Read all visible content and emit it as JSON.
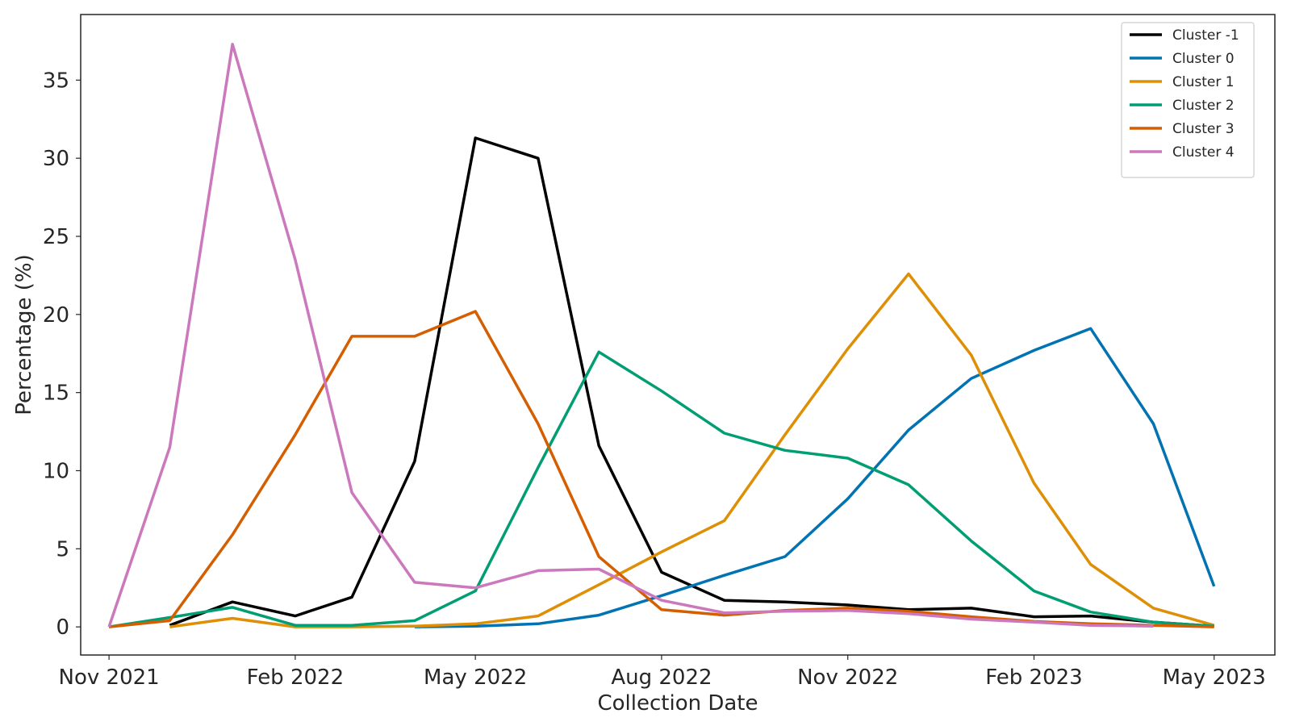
{
  "chart_data": {
    "type": "line",
    "xlabel": "Collection Date",
    "ylabel": "Percentage (%)",
    "xlim": [
      "2021-10-18",
      "2023-05-31"
    ],
    "ylim": [
      -1.8,
      39.2
    ],
    "grid": false,
    "legend_position": "top-right",
    "x_ticks": [
      {
        "date": "2021-11-01",
        "label": "Nov 2021"
      },
      {
        "date": "2022-02-01",
        "label": "Feb 2022"
      },
      {
        "date": "2022-05-01",
        "label": "May 2022"
      },
      {
        "date": "2022-08-01",
        "label": "Aug 2022"
      },
      {
        "date": "2022-11-01",
        "label": "Nov 2022"
      },
      {
        "date": "2023-02-01",
        "label": "Feb 2023"
      },
      {
        "date": "2023-05-01",
        "label": "May 2023"
      }
    ],
    "y_ticks": [
      0,
      5,
      10,
      15,
      20,
      25,
      30,
      35
    ],
    "series": [
      {
        "name": "Cluster -1",
        "color": "#000000",
        "points": [
          [
            "2021-12-01",
            0.1
          ],
          [
            "2022-01-01",
            1.6
          ],
          [
            "2022-02-01",
            0.7
          ],
          [
            "2022-03-01",
            1.9
          ],
          [
            "2022-04-01",
            10.6
          ],
          [
            "2022-05-01",
            31.3
          ],
          [
            "2022-06-01",
            30.0
          ],
          [
            "2022-07-01",
            11.6
          ],
          [
            "2022-08-01",
            3.5
          ],
          [
            "2022-09-01",
            1.7
          ],
          [
            "2022-10-01",
            1.6
          ],
          [
            "2022-11-01",
            1.4
          ],
          [
            "2022-12-01",
            1.1
          ],
          [
            "2023-01-01",
            1.2
          ],
          [
            "2023-02-01",
            0.65
          ],
          [
            "2023-03-01",
            0.7
          ],
          [
            "2023-04-01",
            0.3
          ],
          [
            "2023-05-01",
            0.05
          ]
        ]
      },
      {
        "name": "Cluster 0",
        "color": "#0173b2",
        "points": [
          [
            "2022-04-01",
            0.0
          ],
          [
            "2022-05-01",
            0.05
          ],
          [
            "2022-06-01",
            0.2
          ],
          [
            "2022-07-01",
            0.75
          ],
          [
            "2022-08-01",
            2.0
          ],
          [
            "2022-09-01",
            3.3
          ],
          [
            "2022-10-01",
            4.5
          ],
          [
            "2022-11-01",
            8.2
          ],
          [
            "2022-12-01",
            12.6
          ],
          [
            "2023-01-01",
            15.9
          ],
          [
            "2023-02-01",
            17.7
          ],
          [
            "2023-03-01",
            19.1
          ],
          [
            "2023-04-01",
            13.0
          ],
          [
            "2023-05-01",
            2.6
          ]
        ]
      },
      {
        "name": "Cluster 1",
        "color": "#de8f05",
        "points": [
          [
            "2021-12-01",
            0.0
          ],
          [
            "2022-01-01",
            0.55
          ],
          [
            "2022-02-01",
            0.0
          ],
          [
            "2022-03-01",
            0.0
          ],
          [
            "2022-04-01",
            0.05
          ],
          [
            "2022-05-01",
            0.2
          ],
          [
            "2022-06-01",
            0.7
          ],
          [
            "2022-07-01",
            2.7
          ],
          [
            "2022-08-01",
            4.8
          ],
          [
            "2022-09-01",
            6.8
          ],
          [
            "2022-10-01",
            12.3
          ],
          [
            "2022-11-01",
            17.8
          ],
          [
            "2022-12-01",
            22.6
          ],
          [
            "2023-01-01",
            17.4
          ],
          [
            "2023-02-01",
            9.2
          ],
          [
            "2023-03-01",
            4.0
          ],
          [
            "2023-04-01",
            1.2
          ],
          [
            "2023-05-01",
            0.1
          ]
        ]
      },
      {
        "name": "Cluster 2",
        "color": "#029e73",
        "points": [
          [
            "2021-11-01",
            0.0
          ],
          [
            "2021-12-01",
            0.6
          ],
          [
            "2022-01-01",
            1.25
          ],
          [
            "2022-02-01",
            0.1
          ],
          [
            "2022-03-01",
            0.1
          ],
          [
            "2022-04-01",
            0.4
          ],
          [
            "2022-05-01",
            2.3
          ],
          [
            "2022-06-01",
            10.2
          ],
          [
            "2022-07-01",
            17.6
          ],
          [
            "2022-08-01",
            15.1
          ],
          [
            "2022-09-01",
            12.4
          ],
          [
            "2022-10-01",
            11.3
          ],
          [
            "2022-11-01",
            10.8
          ],
          [
            "2022-12-01",
            9.1
          ],
          [
            "2023-01-01",
            5.5
          ],
          [
            "2023-02-01",
            2.3
          ],
          [
            "2023-03-01",
            0.95
          ],
          [
            "2023-04-01",
            0.3
          ],
          [
            "2023-05-01",
            0.05
          ]
        ]
      },
      {
        "name": "Cluster 3",
        "color": "#d55e00",
        "points": [
          [
            "2021-11-01",
            0.0
          ],
          [
            "2021-12-01",
            0.4
          ],
          [
            "2022-01-01",
            5.9
          ],
          [
            "2022-02-01",
            12.3
          ],
          [
            "2022-03-01",
            18.6
          ],
          [
            "2022-04-01",
            18.6
          ],
          [
            "2022-05-01",
            20.2
          ],
          [
            "2022-06-01",
            13.0
          ],
          [
            "2022-07-01",
            4.5
          ],
          [
            "2022-08-01",
            1.1
          ],
          [
            "2022-09-01",
            0.75
          ],
          [
            "2022-10-01",
            1.05
          ],
          [
            "2022-11-01",
            1.2
          ],
          [
            "2022-12-01",
            1.0
          ],
          [
            "2023-01-01",
            0.65
          ],
          [
            "2023-02-01",
            0.35
          ],
          [
            "2023-03-01",
            0.2
          ],
          [
            "2023-04-01",
            0.1
          ],
          [
            "2023-05-01",
            0.0
          ]
        ]
      },
      {
        "name": "Cluster 4",
        "color": "#cc78bc",
        "points": [
          [
            "2021-11-01",
            0.0
          ],
          [
            "2021-12-01",
            11.5
          ],
          [
            "2022-01-01",
            37.3
          ],
          [
            "2022-02-01",
            23.5
          ],
          [
            "2022-03-01",
            8.6
          ],
          [
            "2022-04-01",
            2.85
          ],
          [
            "2022-05-01",
            2.5
          ],
          [
            "2022-06-01",
            3.6
          ],
          [
            "2022-07-01",
            3.7
          ],
          [
            "2022-08-01",
            1.7
          ],
          [
            "2022-09-01",
            0.9
          ],
          [
            "2022-10-01",
            1.0
          ],
          [
            "2022-11-01",
            1.05
          ],
          [
            "2022-12-01",
            0.85
          ],
          [
            "2023-01-01",
            0.5
          ],
          [
            "2023-02-01",
            0.3
          ],
          [
            "2023-03-01",
            0.1
          ],
          [
            "2023-04-01",
            0.05
          ]
        ]
      }
    ]
  }
}
